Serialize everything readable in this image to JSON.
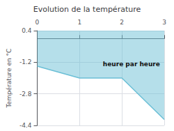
{
  "chart_data": {
    "type": "line",
    "title": "Evolution de la température",
    "ylabel": "Température en °C",
    "x": [
      0,
      1,
      2,
      3
    ],
    "values": [
      -1.4,
      -2.0,
      -2.0,
      -4.1
    ],
    "color": "#6bbfd6",
    "xlim": [
      0,
      3
    ],
    "xticks": [
      0,
      1,
      2,
      3
    ],
    "ylim": [
      -4.4,
      0.4
    ],
    "yticks": [
      0.4,
      -1.2,
      -2.8,
      -4.4
    ],
    "grid": true,
    "annotations": [
      {
        "text": "heure par heure",
        "x": 1.55,
        "y": -1.3
      }
    ]
  }
}
